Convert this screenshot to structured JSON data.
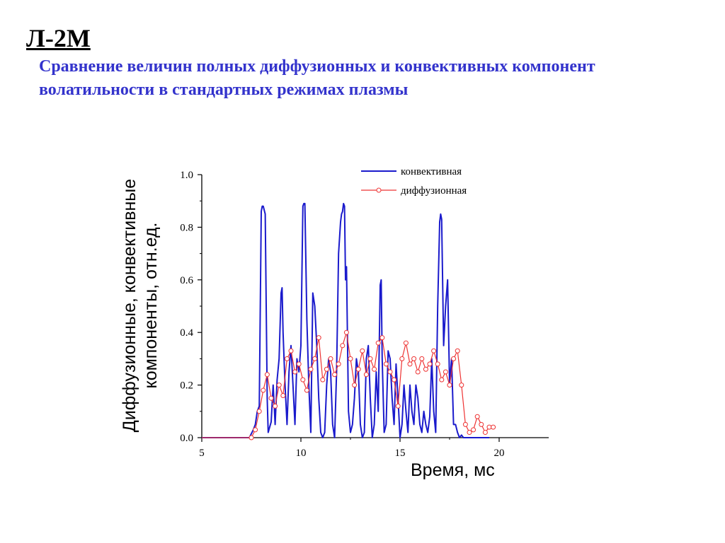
{
  "header": {
    "slide_id": "Л-2М",
    "subtitle": "Сравнение величин полных диффузионных и конвективных компонент волатильности в стандартных режимах плазмы"
  },
  "chart_data": {
    "type": "line",
    "xlabel": "Время, мс",
    "ylabel": "Диффузионные, конвективные компоненты, отн.ед.",
    "xlim": [
      5,
      22.5
    ],
    "ylim": [
      0,
      1.0
    ],
    "xticks": [
      5,
      10,
      15,
      20
    ],
    "xtick_labels": [
      "5",
      "10",
      "15",
      "20"
    ],
    "yticks": [
      0.0,
      0.2,
      0.4,
      0.6,
      0.8,
      1.0
    ],
    "ytick_labels": [
      "0.0",
      "0.2",
      "0.4",
      "0.6",
      "0.8",
      "1.0"
    ],
    "grid": false,
    "legend_position": "top-right",
    "series": [
      {
        "name": "конвективная",
        "color": "#1a1acc",
        "style": "line",
        "x": [
          5.0,
          7.4,
          7.6,
          7.7,
          7.8,
          7.9,
          8.0,
          8.05,
          8.1,
          8.2,
          8.3,
          8.35,
          8.5,
          8.6,
          8.7,
          8.8,
          8.9,
          9.0,
          9.05,
          9.1,
          9.2,
          9.3,
          9.4,
          9.5,
          9.6,
          9.7,
          9.8,
          9.9,
          10.0,
          10.1,
          10.15,
          10.2,
          10.3,
          10.4,
          10.5,
          10.6,
          10.7,
          10.8,
          10.9,
          11.0,
          11.1,
          11.2,
          11.3,
          11.4,
          11.5,
          11.6,
          11.7,
          11.8,
          11.9,
          12.0,
          12.05,
          12.1,
          12.15,
          12.2,
          12.25,
          12.3,
          12.4,
          12.5,
          12.6,
          12.7,
          12.8,
          12.9,
          13.0,
          13.1,
          13.2,
          13.3,
          13.4,
          13.5,
          13.6,
          13.7,
          13.8,
          13.9,
          14.0,
          14.05,
          14.1,
          14.2,
          14.3,
          14.4,
          14.5,
          14.6,
          14.7,
          14.8,
          14.9,
          15.0,
          15.1,
          15.2,
          15.3,
          15.4,
          15.5,
          15.6,
          15.7,
          15.8,
          15.9,
          16.0,
          16.1,
          16.2,
          16.3,
          16.4,
          16.5,
          16.6,
          16.7,
          16.8,
          16.9,
          17.0,
          17.05,
          17.1,
          17.2,
          17.3,
          17.4,
          17.5,
          17.6,
          17.7,
          17.8,
          17.9,
          18.0,
          18.1,
          18.2,
          18.5,
          19.0,
          19.3,
          19.5
        ],
        "y": [
          0.0,
          0.0,
          0.03,
          0.05,
          0.1,
          0.12,
          0.86,
          0.88,
          0.88,
          0.85,
          0.15,
          0.02,
          0.06,
          0.2,
          0.05,
          0.22,
          0.3,
          0.55,
          0.57,
          0.4,
          0.2,
          0.05,
          0.25,
          0.35,
          0.2,
          0.05,
          0.3,
          0.25,
          0.35,
          0.88,
          0.89,
          0.89,
          0.45,
          0.2,
          0.02,
          0.55,
          0.5,
          0.35,
          0.15,
          0.02,
          0.0,
          0.02,
          0.2,
          0.3,
          0.25,
          0.05,
          0.0,
          0.25,
          0.7,
          0.82,
          0.85,
          0.86,
          0.89,
          0.88,
          0.6,
          0.65,
          0.1,
          0.02,
          0.05,
          0.15,
          0.3,
          0.25,
          0.05,
          0.0,
          0.02,
          0.3,
          0.35,
          0.15,
          0.0,
          0.05,
          0.25,
          0.1,
          0.58,
          0.6,
          0.3,
          0.02,
          0.05,
          0.33,
          0.3,
          0.15,
          0.05,
          0.28,
          0.15,
          0.0,
          0.05,
          0.2,
          0.1,
          0.02,
          0.2,
          0.1,
          0.05,
          0.2,
          0.15,
          0.05,
          0.02,
          0.1,
          0.05,
          0.02,
          0.08,
          0.3,
          0.1,
          0.02,
          0.5,
          0.82,
          0.85,
          0.83,
          0.35,
          0.5,
          0.6,
          0.2,
          0.3,
          0.05,
          0.05,
          0.02,
          0.0,
          0.01,
          0.0,
          0.0,
          0.0,
          0.0,
          0.0
        ],
        "fill": ""
      },
      {
        "name": "диффузионная",
        "color": "#ee3333",
        "style": "line-markers",
        "x": [
          5.0,
          7.5,
          7.7,
          7.9,
          8.1,
          8.3,
          8.5,
          8.7,
          8.9,
          9.1,
          9.3,
          9.5,
          9.7,
          9.9,
          10.1,
          10.3,
          10.5,
          10.7,
          10.9,
          11.1,
          11.3,
          11.5,
          11.7,
          11.9,
          12.1,
          12.3,
          12.5,
          12.7,
          12.9,
          13.1,
          13.3,
          13.5,
          13.7,
          13.9,
          14.1,
          14.3,
          14.5,
          14.7,
          14.9,
          15.1,
          15.3,
          15.5,
          15.7,
          15.9,
          16.1,
          16.3,
          16.5,
          16.7,
          16.9,
          17.1,
          17.3,
          17.5,
          17.7,
          17.9,
          18.1,
          18.3,
          18.5,
          18.7,
          18.9,
          19.1,
          19.3,
          19.5,
          19.7
        ],
        "y": [
          0.0,
          0.0,
          0.03,
          0.1,
          0.18,
          0.24,
          0.15,
          0.12,
          0.2,
          0.16,
          0.3,
          0.33,
          0.25,
          0.28,
          0.22,
          0.18,
          0.26,
          0.3,
          0.38,
          0.22,
          0.26,
          0.3,
          0.24,
          0.28,
          0.35,
          0.4,
          0.3,
          0.2,
          0.26,
          0.33,
          0.24,
          0.3,
          0.26,
          0.36,
          0.38,
          0.28,
          0.25,
          0.22,
          0.12,
          0.3,
          0.36,
          0.28,
          0.3,
          0.25,
          0.3,
          0.26,
          0.28,
          0.33,
          0.28,
          0.22,
          0.25,
          0.2,
          0.3,
          0.33,
          0.2,
          0.05,
          0.02,
          0.03,
          0.08,
          0.05,
          0.02,
          0.04,
          0.04
        ],
        "fill": ""
      }
    ]
  }
}
